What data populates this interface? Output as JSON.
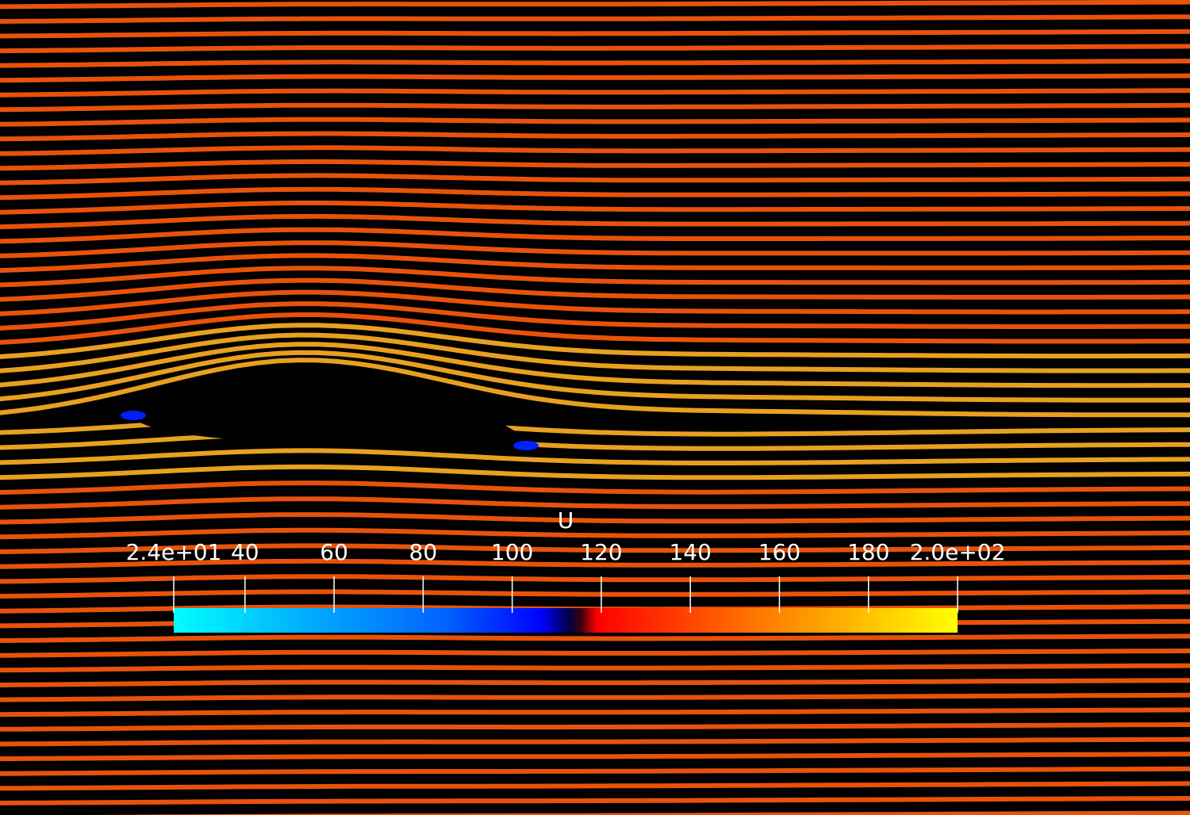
{
  "scalar_bar": {
    "title": "U",
    "range": [
      24,
      200
    ],
    "tick_labels": [
      "2.4e+01",
      "40",
      "60",
      "80",
      "100",
      "120",
      "140",
      "160",
      "180",
      "2.0e+02"
    ],
    "tick_values": [
      24,
      40,
      60,
      80,
      100,
      120,
      140,
      160,
      180,
      200
    ],
    "colormap": [
      "#00ffff",
      "#0080ff",
      "#0000ff",
      "#000000",
      "#ff0000",
      "#ff8000",
      "#ffff00"
    ]
  },
  "scene": {
    "background": "#000000",
    "streamline_base_color": "#e8520a",
    "streamline_fast_color": "#e8a020",
    "low_velocity_color": "#0020ff"
  }
}
